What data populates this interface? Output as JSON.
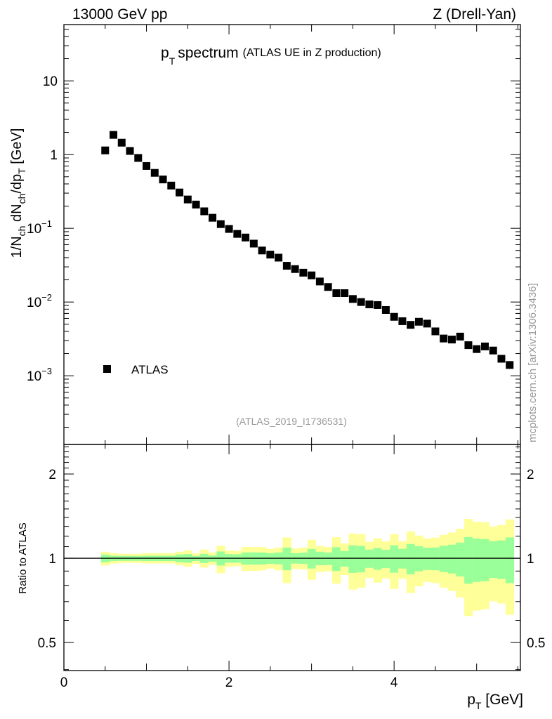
{
  "header": {
    "left": "13000 GeV pp",
    "right": "Z (Drell-Yan)"
  },
  "watermark": "mcplots.cern.ch [arXiv:1306.3436]",
  "analysis_id": "(ATLAS_2019_I1736531)",
  "colors": {
    "inner_band": "#99ff99",
    "outer_band": "#ffff99",
    "marker": "#000000",
    "watermark": "#999999"
  },
  "chart_data": [
    {
      "type": "scatter",
      "title_main": "p",
      "title_sub": "T",
      "title_rest": "spectrum",
      "title_small": "(ATLAS UE in Z production)",
      "ylabel": "1/N_ch dN_ch/dp_T [GeV]",
      "ylabel_parts": [
        "1/N",
        "ch",
        " dN",
        "ch",
        "/dp",
        "T",
        " [GeV]"
      ],
      "yscale": "log",
      "xlim": [
        0,
        5.53
      ],
      "ylim": [
        0.000117,
        58
      ],
      "yticks": [
        {
          "v": 0.001,
          "base": "10",
          "exp": "−3"
        },
        {
          "v": 0.01,
          "base": "10",
          "exp": "−2"
        },
        {
          "v": 0.1,
          "base": "10",
          "exp": "−1"
        },
        {
          "v": 1,
          "base": "1",
          "exp": ""
        },
        {
          "v": 10,
          "base": "10",
          "exp": ""
        }
      ],
      "legend": {
        "label": "ATLAS",
        "placement": "bottom-left"
      },
      "series": [
        {
          "name": "ATLAS",
          "x": [
            0.5,
            0.6,
            0.7,
            0.8,
            0.9,
            1.0,
            1.1,
            1.2,
            1.3,
            1.4,
            1.5,
            1.6,
            1.7,
            1.8,
            1.9,
            2.0,
            2.1,
            2.2,
            2.3,
            2.4,
            2.5,
            2.6,
            2.7,
            2.8,
            2.9,
            3.0,
            3.1,
            3.2,
            3.3,
            3.4,
            3.5,
            3.6,
            3.7,
            3.8,
            3.9,
            4.0,
            4.1,
            4.2,
            4.3,
            4.4,
            4.5,
            4.6,
            4.7,
            4.8,
            4.9,
            5.0,
            5.1,
            5.2,
            5.3,
            5.4
          ],
          "y": [
            1.14,
            1.85,
            1.45,
            1.12,
            0.9,
            0.7,
            0.565,
            0.46,
            0.38,
            0.306,
            0.246,
            0.21,
            0.17,
            0.139,
            0.114,
            0.098,
            0.084,
            0.075,
            0.062,
            0.05,
            0.044,
            0.04,
            0.031,
            0.028,
            0.025,
            0.023,
            0.019,
            0.016,
            0.0132,
            0.0132,
            0.011,
            0.01,
            0.0093,
            0.0091,
            0.0078,
            0.0063,
            0.0055,
            0.0049,
            0.0054,
            0.0051,
            0.004,
            0.0032,
            0.0031,
            0.0034,
            0.0026,
            0.0023,
            0.0025,
            0.0022,
            0.0017,
            0.0014
          ]
        }
      ]
    },
    {
      "type": "area",
      "ylabel": "Ratio to ATLAS",
      "yscale": "log",
      "xlabel": "p_T [GeV]",
      "xlabel_parts": [
        "p",
        "T",
        " [GeV]"
      ],
      "xlim": [
        0,
        5.53
      ],
      "ylim": [
        0.397,
        2.55
      ],
      "yticks": [
        {
          "v": 0.5,
          "label": "0.5"
        },
        {
          "v": 1,
          "label": "1"
        },
        {
          "v": 2,
          "label": "2"
        }
      ],
      "xticks": [
        {
          "v": 0,
          "label": "0"
        },
        {
          "v": 2,
          "label": "2"
        },
        {
          "v": 4,
          "label": "4"
        }
      ],
      "bin_width": 0.1,
      "x": [
        0.5,
        0.6,
        0.7,
        0.8,
        0.9,
        1.0,
        1.1,
        1.2,
        1.3,
        1.4,
        1.5,
        1.6,
        1.7,
        1.8,
        1.9,
        2.0,
        2.1,
        2.2,
        2.3,
        2.4,
        2.5,
        2.6,
        2.7,
        2.8,
        2.9,
        3.0,
        3.1,
        3.2,
        3.3,
        3.4,
        3.5,
        3.6,
        3.7,
        3.8,
        3.9,
        4.0,
        4.1,
        4.2,
        4.3,
        4.4,
        4.5,
        4.6,
        4.7,
        4.8,
        4.9,
        5.0,
        5.1,
        5.2,
        5.3,
        5.4
      ],
      "outer_up": [
        1.055,
        1.043,
        1.037,
        1.037,
        1.037,
        1.043,
        1.043,
        1.043,
        1.043,
        1.055,
        1.067,
        1.041,
        1.074,
        1.049,
        1.109,
        1.067,
        1.063,
        1.097,
        1.097,
        1.097,
        1.08,
        1.092,
        1.187,
        1.084,
        1.092,
        1.164,
        1.107,
        1.097,
        1.189,
        1.129,
        1.226,
        1.219,
        1.144,
        1.178,
        1.149,
        1.219,
        1.151,
        1.248,
        1.205,
        1.176,
        1.185,
        1.212,
        1.236,
        1.274,
        1.382,
        1.35,
        1.345,
        1.299,
        1.314,
        1.376
      ],
      "inner_up": [
        1.031,
        1.021,
        1.019,
        1.019,
        1.019,
        1.021,
        1.021,
        1.021,
        1.021,
        1.031,
        1.035,
        1.019,
        1.037,
        1.023,
        1.057,
        1.035,
        1.033,
        1.049,
        1.049,
        1.049,
        1.043,
        1.049,
        1.092,
        1.043,
        1.047,
        1.08,
        1.055,
        1.049,
        1.095,
        1.061,
        1.112,
        1.107,
        1.074,
        1.088,
        1.072,
        1.112,
        1.08,
        1.124,
        1.105,
        1.09,
        1.093,
        1.109,
        1.118,
        1.137,
        1.191,
        1.175,
        1.171,
        1.151,
        1.158,
        1.187
      ],
      "inner_down": [
        0.968,
        0.977,
        0.979,
        0.979,
        0.979,
        0.977,
        0.977,
        0.977,
        0.977,
        0.968,
        0.964,
        0.977,
        0.962,
        0.973,
        0.942,
        0.964,
        0.964,
        0.949,
        0.949,
        0.949,
        0.955,
        0.951,
        0.906,
        0.957,
        0.955,
        0.919,
        0.944,
        0.946,
        0.901,
        0.933,
        0.886,
        0.891,
        0.924,
        0.91,
        0.922,
        0.888,
        0.919,
        0.876,
        0.898,
        0.908,
        0.906,
        0.893,
        0.882,
        0.861,
        0.811,
        0.823,
        0.828,
        0.851,
        0.843,
        0.815
      ],
      "outer_down": [
        0.942,
        0.957,
        0.962,
        0.962,
        0.962,
        0.958,
        0.958,
        0.958,
        0.958,
        0.944,
        0.933,
        0.955,
        0.926,
        0.947,
        0.884,
        0.931,
        0.937,
        0.901,
        0.901,
        0.905,
        0.919,
        0.905,
        0.815,
        0.915,
        0.912,
        0.838,
        0.893,
        0.898,
        0.811,
        0.871,
        0.773,
        0.785,
        0.851,
        0.819,
        0.846,
        0.777,
        0.844,
        0.751,
        0.794,
        0.822,
        0.815,
        0.785,
        0.764,
        0.724,
        0.622,
        0.65,
        0.657,
        0.702,
        0.689,
        0.628
      ]
    }
  ]
}
